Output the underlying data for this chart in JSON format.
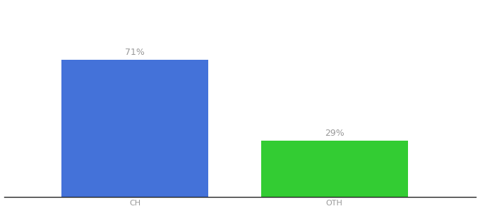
{
  "categories": [
    "CH",
    "OTH"
  ],
  "values": [
    71,
    29
  ],
  "bar_colors": [
    "#4472d9",
    "#33cc33"
  ],
  "value_labels": [
    "71%",
    "29%"
  ],
  "ylim": [
    0,
    100
  ],
  "background_color": "#ffffff",
  "label_color": "#999999",
  "label_fontsize": 9,
  "tick_fontsize": 8,
  "bar_width": 0.28,
  "x_positions": [
    0.3,
    0.68
  ]
}
